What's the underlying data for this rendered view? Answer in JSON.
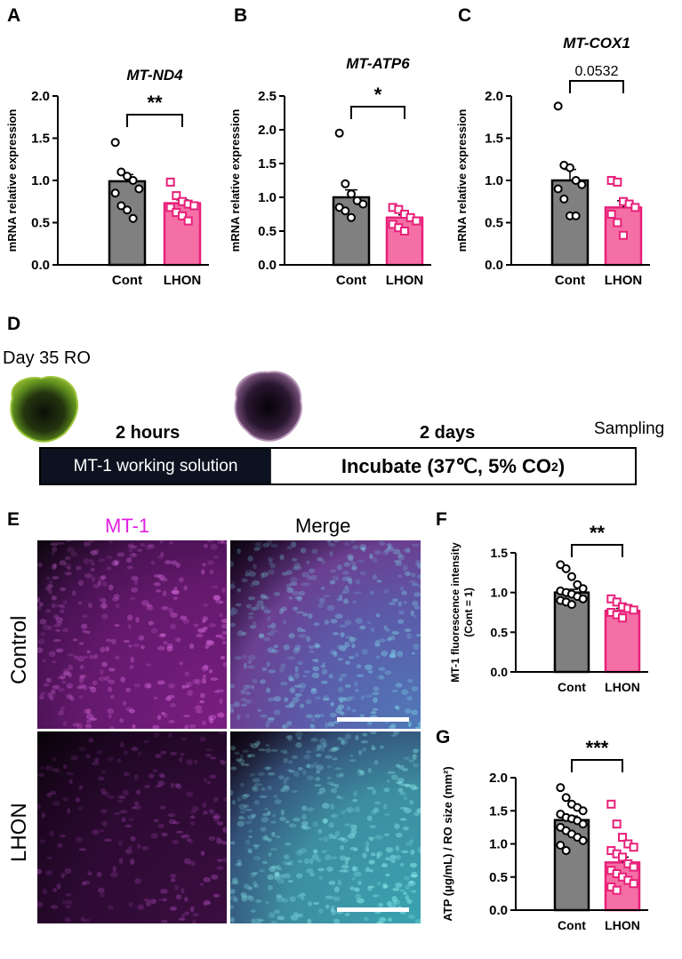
{
  "panels": {
    "A": "A",
    "B": "B",
    "C": "C",
    "D": "D",
    "E": "E",
    "F": "F",
    "G": "G"
  },
  "colors": {
    "control_bar": "#808080",
    "lhon_bar": "#f46fa5",
    "lhon_marker": "#e8207a",
    "mt1_magenta": "#e020e0",
    "dapi_cyan": "#3fb5c8"
  },
  "chart_data": [
    {
      "id": "A",
      "type": "bar",
      "title": "MT-ND4",
      "ylabel": "mRNA relative  expression",
      "categories": [
        "Cont",
        "LHON"
      ],
      "values": [
        0.99,
        0.73
      ],
      "sem": [
        0.08,
        0.04
      ],
      "ylim": [
        0,
        2.0
      ],
      "yticks": [
        "0.0",
        "0.5",
        "1.0",
        "1.5",
        "2.0"
      ],
      "significance": "**",
      "points": [
        [
          1.45,
          1.1,
          1.05,
          1.0,
          0.9,
          0.85,
          0.7,
          0.65,
          0.55
        ],
        [
          0.98,
          0.82,
          0.75,
          0.72,
          0.7,
          0.68,
          0.62,
          0.58,
          0.52
        ]
      ]
    },
    {
      "id": "B",
      "type": "bar",
      "title": "MT-ATP6",
      "ylabel": "mRNA relative  expression",
      "categories": [
        "Cont",
        "LHON"
      ],
      "values": [
        1.0,
        0.7
      ],
      "sem": [
        0.11,
        0.04
      ],
      "ylim": [
        0,
        2.5
      ],
      "yticks": [
        "0.0",
        "0.5",
        "1.0",
        "1.5",
        "2.0",
        "2.5"
      ],
      "significance": "*",
      "points": [
        [
          1.95,
          1.2,
          1.05,
          0.95,
          0.9,
          0.85,
          0.8,
          0.7
        ],
        [
          0.85,
          0.82,
          0.75,
          0.7,
          0.65,
          0.6,
          0.55,
          0.5
        ]
      ]
    },
    {
      "id": "C",
      "type": "bar",
      "title": "MT-COX1",
      "ylabel": "mRNA relative  expression",
      "categories": [
        "Cont",
        "LHON"
      ],
      "values": [
        1.0,
        0.68
      ],
      "sem": [
        0.13,
        0.08
      ],
      "ylim": [
        0,
        2.0
      ],
      "yticks": [
        "0.0",
        "0.5",
        "1.0",
        "1.5",
        "2.0"
      ],
      "significance": "0.0532",
      "points": [
        [
          1.88,
          1.18,
          1.15,
          1.0,
          0.95,
          0.9,
          0.78,
          0.58,
          0.58
        ],
        [
          1.0,
          0.98,
          0.75,
          0.72,
          0.68,
          0.6,
          0.5,
          0.35
        ]
      ]
    },
    {
      "id": "F",
      "type": "bar",
      "ylabel": "MT-1 fluorescence intensity",
      "ylabel2": "(Cont = 1)",
      "categories": [
        "Cont",
        "LHON"
      ],
      "values": [
        1.0,
        0.77
      ],
      "sem": [
        0.04,
        0.03
      ],
      "ylim": [
        0,
        1.5
      ],
      "yticks": [
        "0.0",
        "0.5",
        "1.0",
        "1.5"
      ],
      "significance": "**",
      "points": [
        [
          1.35,
          1.3,
          1.2,
          1.1,
          1.05,
          1.02,
          1.0,
          0.98,
          0.95,
          0.92,
          0.9,
          0.88,
          0.85
        ],
        [
          0.92,
          0.88,
          0.82,
          0.8,
          0.78,
          0.75,
          0.72,
          0.68
        ]
      ]
    },
    {
      "id": "G",
      "type": "bar",
      "ylabel": "ATP (μg/mL) / RO size (mm²)",
      "categories": [
        "Cont",
        "LHON"
      ],
      "values": [
        1.36,
        0.72
      ],
      "sem": [
        0.06,
        0.08
      ],
      "ylim": [
        0,
        2.0
      ],
      "yticks": [
        "0.0",
        "0.5",
        "1.0",
        "1.5",
        "2.0"
      ],
      "significance": "***",
      "points": [
        [
          1.85,
          1.7,
          1.6,
          1.55,
          1.5,
          1.45,
          1.4,
          1.38,
          1.35,
          1.3,
          1.25,
          1.2,
          1.15,
          1.1,
          1.05,
          0.98,
          0.9
        ],
        [
          1.6,
          1.3,
          1.1,
          1.0,
          0.95,
          0.9,
          0.85,
          0.8,
          0.7,
          0.65,
          0.6,
          0.55,
          0.5,
          0.45,
          0.4,
          0.35,
          0.3
        ]
      ]
    }
  ],
  "timeline": {
    "start_label": "Day 35 RO",
    "step1_duration": "2 hours",
    "step2_duration": "2 days",
    "end_label": "Sampling",
    "step1_text": "MT-1 working solution",
    "step2_text": "Incubate (37℃, 5% CO",
    "step2_sub": "2",
    "step2_end": ")"
  },
  "images": {
    "col_mt1": "MT-1",
    "col_merge": "Merge",
    "row_control": "Control",
    "row_lhon": "LHON"
  }
}
